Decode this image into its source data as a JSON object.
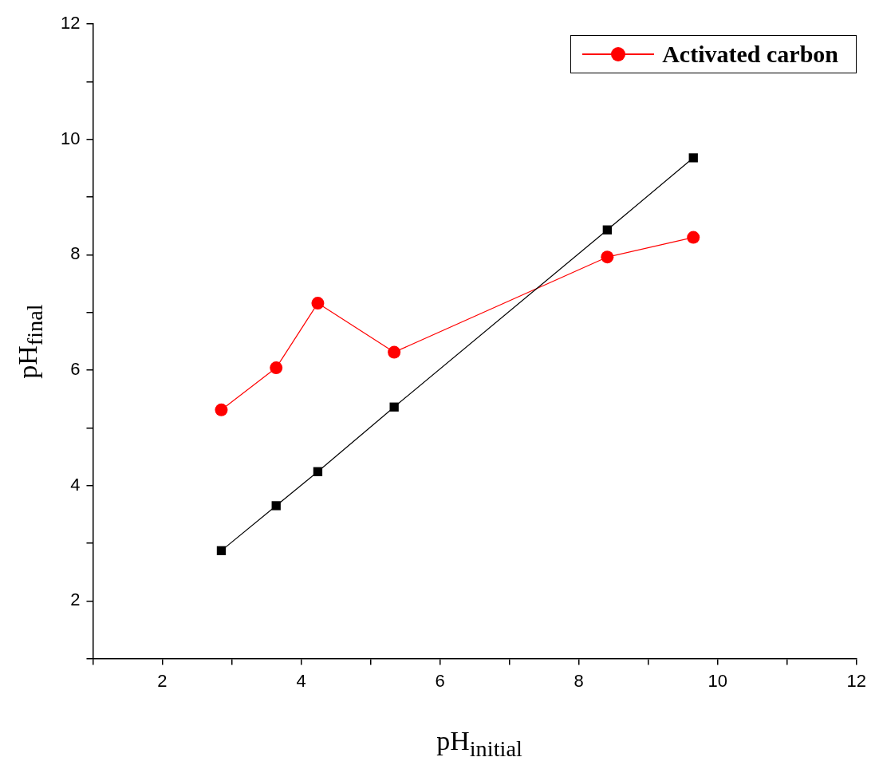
{
  "chart_data": {
    "type": "line",
    "xlabel": "pH$_{initial}$",
    "ylabel": "pH$_{final}$",
    "xlim": [
      1,
      12
    ],
    "ylim": [
      1,
      12
    ],
    "xticks": [
      {
        "value": 1,
        "label": null
      },
      2,
      {
        "value": 3,
        "label": null
      },
      4,
      {
        "value": 5,
        "label": null
      },
      6,
      {
        "value": 7,
        "label": null
      },
      8,
      {
        "value": 9,
        "label": null
      },
      10,
      {
        "value": 11,
        "label": null
      },
      12
    ],
    "yticks": [
      {
        "value": 1,
        "label": null
      },
      2,
      {
        "value": 3,
        "label": null
      },
      4,
      {
        "value": 5,
        "label": null
      },
      6,
      {
        "value": 7,
        "label": null
      },
      8,
      {
        "value": 9,
        "label": null
      },
      10,
      {
        "value": 11,
        "label": null
      },
      12
    ],
    "grid": false,
    "legend": "top right",
    "line_style": "solid",
    "series": [
      {
        "color": "#000000",
        "marker": "square",
        "x": [
          2.85,
          3.64,
          4.24,
          5.34,
          8.41,
          9.65
        ],
        "values": [
          2.87,
          3.65,
          4.24,
          5.36,
          8.43,
          9.68
        ]
      },
      {
        "name": "Activated carbon",
        "color": "#ff0000",
        "marker": "circle",
        "x": [
          2.85,
          3.64,
          4.24,
          5.34,
          8.41,
          9.65
        ],
        "values": [
          5.31,
          6.04,
          7.16,
          6.31,
          7.96,
          8.3
        ]
      }
    ]
  }
}
